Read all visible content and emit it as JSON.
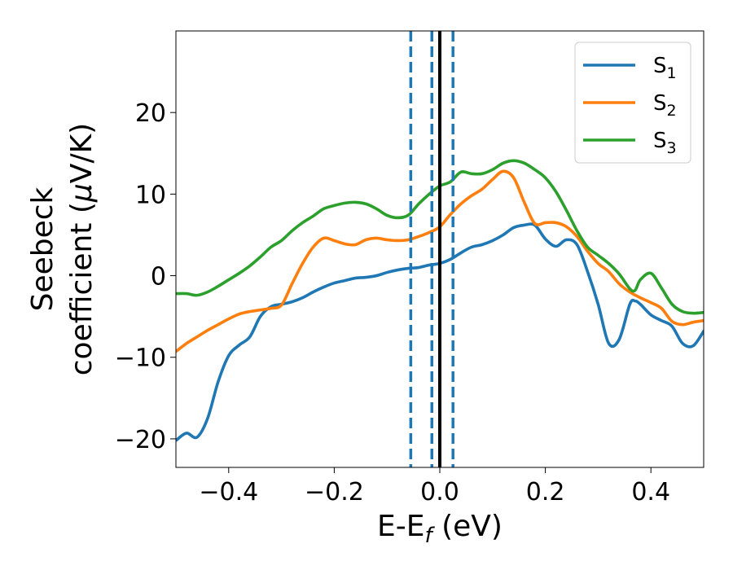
{
  "chart_data": {
    "type": "line",
    "xlabel": {
      "main": "E-E",
      "sub": "f",
      "unit": " (eV)"
    },
    "ylabel": {
      "line1": "Seebeck",
      "line2_pre": "coefficient  (",
      "line2_mu": "μ",
      "line2_post": "V/K)"
    },
    "xlim": [
      -0.5,
      0.5
    ],
    "ylim": [
      -23.5,
      30
    ],
    "xticks": [
      -0.4,
      -0.2,
      0.0,
      0.2,
      0.4
    ],
    "xtick_labels": [
      "−0.4",
      "−0.2",
      "0.0",
      "0.2",
      "0.4"
    ],
    "yticks": [
      -20,
      -10,
      0,
      10,
      20
    ],
    "ytick_labels": [
      "−20",
      "−10",
      "0",
      "10",
      "20"
    ],
    "grid": false,
    "legend_position": "top-right",
    "vlines": [
      {
        "x": 0.0,
        "style": "solid",
        "color": "#000000"
      },
      {
        "x": -0.055,
        "style": "dashed",
        "color": "#1f77b4"
      },
      {
        "x": -0.015,
        "style": "dashed",
        "color": "#1f77b4"
      },
      {
        "x": 0.025,
        "style": "dashed",
        "color": "#1f77b4"
      }
    ],
    "series": [
      {
        "name": "S",
        "sub": "1",
        "color": "#1f77b4",
        "x": [
          -0.5,
          -0.48,
          -0.46,
          -0.44,
          -0.42,
          -0.4,
          -0.38,
          -0.36,
          -0.34,
          -0.32,
          -0.3,
          -0.28,
          -0.26,
          -0.24,
          -0.22,
          -0.2,
          -0.18,
          -0.16,
          -0.14,
          -0.12,
          -0.1,
          -0.08,
          -0.06,
          -0.04,
          -0.02,
          0.0,
          0.02,
          0.04,
          0.06,
          0.08,
          0.1,
          0.12,
          0.14,
          0.16,
          0.18,
          0.2,
          0.22,
          0.24,
          0.26,
          0.28,
          0.3,
          0.32,
          0.34,
          0.36,
          0.37,
          0.38,
          0.4,
          0.42,
          0.44,
          0.46,
          0.48,
          0.5
        ],
        "y": [
          -20.2,
          -19.3,
          -19.8,
          -17.5,
          -13.0,
          -9.8,
          -8.5,
          -7.5,
          -5.0,
          -3.8,
          -3.5,
          -3.2,
          -2.7,
          -2.0,
          -1.4,
          -0.9,
          -0.6,
          -0.3,
          -0.2,
          0.0,
          0.4,
          0.7,
          0.9,
          1.0,
          1.3,
          1.5,
          2.0,
          2.8,
          3.5,
          3.8,
          4.3,
          5.0,
          5.9,
          6.2,
          6.2,
          4.5,
          3.6,
          4.4,
          3.8,
          0.5,
          -3.5,
          -8.3,
          -7.8,
          -3.5,
          -3.1,
          -3.5,
          -4.8,
          -5.5,
          -6.2,
          -8.3,
          -8.6,
          -6.8
        ]
      },
      {
        "name": "S",
        "sub": "2",
        "color": "#ff7f0e",
        "x": [
          -0.5,
          -0.48,
          -0.46,
          -0.44,
          -0.42,
          -0.4,
          -0.38,
          -0.36,
          -0.34,
          -0.32,
          -0.3,
          -0.28,
          -0.26,
          -0.24,
          -0.22,
          -0.2,
          -0.18,
          -0.16,
          -0.14,
          -0.12,
          -0.1,
          -0.08,
          -0.06,
          -0.04,
          -0.02,
          0.0,
          0.02,
          0.04,
          0.06,
          0.08,
          0.1,
          0.12,
          0.14,
          0.16,
          0.18,
          0.2,
          0.22,
          0.24,
          0.26,
          0.28,
          0.3,
          0.32,
          0.34,
          0.36,
          0.38,
          0.4,
          0.42,
          0.44,
          0.46,
          0.48,
          0.5
        ],
        "y": [
          -9.3,
          -8.3,
          -7.5,
          -6.7,
          -6.0,
          -5.3,
          -4.7,
          -4.4,
          -4.2,
          -4.0,
          -3.6,
          -1.0,
          1.5,
          3.5,
          4.6,
          4.3,
          3.9,
          3.8,
          4.4,
          4.6,
          4.4,
          4.3,
          4.4,
          4.8,
          5.3,
          6.0,
          7.5,
          8.8,
          9.8,
          10.6,
          11.8,
          12.8,
          12.0,
          9.0,
          6.4,
          6.5,
          6.5,
          6.0,
          4.8,
          3.0,
          1.5,
          0.5,
          -1.0,
          -2.0,
          -2.7,
          -3.3,
          -4.0,
          -5.6,
          -6.0,
          -5.7,
          -5.5
        ]
      },
      {
        "name": "S",
        "sub": "3",
        "color": "#2ca02c",
        "x": [
          -0.5,
          -0.48,
          -0.46,
          -0.44,
          -0.42,
          -0.4,
          -0.38,
          -0.36,
          -0.34,
          -0.32,
          -0.3,
          -0.28,
          -0.26,
          -0.24,
          -0.22,
          -0.2,
          -0.18,
          -0.16,
          -0.14,
          -0.12,
          -0.1,
          -0.08,
          -0.06,
          -0.04,
          -0.02,
          0.0,
          0.02,
          0.04,
          0.06,
          0.08,
          0.1,
          0.12,
          0.14,
          0.16,
          0.18,
          0.2,
          0.22,
          0.24,
          0.26,
          0.28,
          0.3,
          0.32,
          0.34,
          0.36,
          0.37,
          0.38,
          0.4,
          0.42,
          0.44,
          0.46,
          0.48,
          0.5
        ],
        "y": [
          -2.2,
          -2.2,
          -2.4,
          -2.0,
          -1.3,
          -0.5,
          0.3,
          1.2,
          2.3,
          3.5,
          4.3,
          5.5,
          6.5,
          7.3,
          8.2,
          8.6,
          8.9,
          9.0,
          8.8,
          8.2,
          7.4,
          7.1,
          7.4,
          8.8,
          10.0,
          11.0,
          11.5,
          12.7,
          12.5,
          12.5,
          13.0,
          13.8,
          14.1,
          13.8,
          13.0,
          12.0,
          10.3,
          8.0,
          5.5,
          3.5,
          2.5,
          1.5,
          0.2,
          -1.6,
          -1.8,
          -0.5,
          0.3,
          -1.5,
          -3.5,
          -4.4,
          -4.6,
          -4.5
        ]
      }
    ]
  }
}
